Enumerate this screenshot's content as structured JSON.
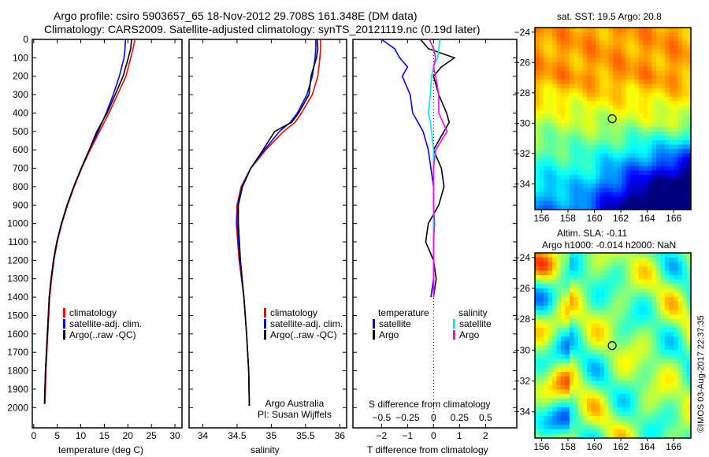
{
  "title": {
    "line1": "Argo profile: csiro 5903657_65 18-Nov-2012 29.708S 161.348E (DM data)",
    "line2": "Climatology: CARS2009. Satellite-adjusted climatology: synTS_20121119.nc (0.19d later)"
  },
  "colors": {
    "climatology": "#ff0000",
    "satellite": "#0000ff",
    "argo": "#000000",
    "s_satellite": "#00e5e5",
    "s_argo": "#ff00ff"
  },
  "credit": "©IMOS 03-Aug-2017 22:37:35",
  "legend_profiles": [
    "climatology",
    "satellite-adj. clim.",
    "Argo(..raw -QC)"
  ],
  "legend_diff": {
    "t_head": "temperature",
    "s_head": "salinity",
    "t_sat": "satellite",
    "t_argo": "Argo",
    "s_sat": "satellite",
    "s_argo": "Argo"
  },
  "attribution": {
    "line1": "Argo Australia",
    "line2": "PI: Susan Wijffels"
  },
  "chart_data": [
    {
      "type": "line",
      "name": "temperature",
      "xlabel": "temperature (deg C)",
      "ylabel": "",
      "xlim": [
        -0.3,
        31.5
      ],
      "ylim": [
        2110,
        0
      ],
      "xticks": [
        0,
        5,
        10,
        15,
        20,
        25,
        30
      ],
      "yticks": [
        0,
        100,
        200,
        300,
        400,
        500,
        600,
        700,
        800,
        900,
        1000,
        1100,
        1200,
        1300,
        1400,
        1500,
        1600,
        1700,
        1800,
        1900,
        2000
      ],
      "depth": [
        0,
        50,
        100,
        200,
        300,
        400,
        500,
        600,
        700,
        800,
        900,
        1000,
        1100,
        1200,
        1300,
        1400,
        1600,
        1800,
        1980
      ],
      "series": [
        {
          "name": "climatology",
          "values": [
            21.5,
            21.1,
            20.6,
            19.6,
            17.8,
            16.0,
            14.0,
            12.0,
            10.2,
            8.6,
            7.2,
            6.0,
            5.0,
            4.3,
            3.8,
            3.4,
            3.0,
            2.6,
            2.4
          ]
        },
        {
          "name": "satellite-adj. clim.",
          "values": [
            19.5,
            19.4,
            19.2,
            18.2,
            16.9,
            15.4,
            13.7,
            11.8,
            10.1,
            8.5,
            7.1,
            5.9,
            4.9,
            4.2,
            3.7,
            3.3,
            2.9,
            2.5,
            2.3
          ]
        },
        {
          "name": "Argo(..raw -QC)",
          "values": [
            20.8,
            20.6,
            20.1,
            19.0,
            17.3,
            15.6,
            13.4,
            11.8,
            10.1,
            8.5,
            7.1,
            5.9,
            4.9,
            4.2,
            3.7,
            3.3,
            2.9,
            2.5,
            2.3
          ]
        }
      ]
    },
    {
      "type": "line",
      "name": "salinity",
      "xlabel": "salinity",
      "xlim": [
        33.8,
        36.1
      ],
      "ylim": [
        2110,
        0
      ],
      "xticks": [
        34,
        34.5,
        35,
        35.5,
        36
      ],
      "depth": [
        0,
        50,
        100,
        200,
        300,
        400,
        450,
        500,
        600,
        700,
        800,
        900,
        1000,
        1200,
        1400,
        1600,
        1800,
        1990
      ],
      "series": [
        {
          "name": "climatology",
          "values": [
            35.72,
            35.72,
            35.71,
            35.68,
            35.6,
            35.44,
            35.35,
            35.18,
            34.92,
            34.7,
            34.56,
            34.5,
            34.49,
            34.53,
            34.6,
            34.64,
            34.67,
            34.68
          ]
        },
        {
          "name": "satellite-adj. clim.",
          "values": [
            35.65,
            35.65,
            35.64,
            35.6,
            35.52,
            35.38,
            35.28,
            35.12,
            34.9,
            34.7,
            34.57,
            34.51,
            34.5,
            34.54,
            34.6,
            34.64,
            34.67,
            34.68
          ]
        },
        {
          "name": "Argo(..raw -QC)",
          "values": [
            35.67,
            35.68,
            35.66,
            35.58,
            35.55,
            35.4,
            35.3,
            35.05,
            34.88,
            34.7,
            34.58,
            34.52,
            34.52,
            34.55,
            34.6,
            34.64,
            34.67,
            34.68
          ]
        }
      ]
    },
    {
      "type": "line",
      "name": "difference",
      "xlabel": "T difference from climatology",
      "x2label": "S difference from climatology",
      "xlim": [
        -3.1,
        3.2
      ],
      "xticks": [
        -2,
        -1,
        0,
        1,
        2
      ],
      "x2ticks": [
        -0.5,
        -0.25,
        0,
        0.25,
        0.5
      ],
      "ylim": [
        2110,
        0
      ],
      "depth": [
        0,
        50,
        100,
        150,
        200,
        300,
        400,
        450,
        500,
        600,
        700,
        800,
        900,
        1000,
        1100,
        1200,
        1300,
        1400
      ],
      "series": [
        {
          "name": "T satellite",
          "values": [
            -2.0,
            -1.5,
            -1.3,
            -1.0,
            -1.2,
            -0.9,
            -0.8,
            -0.6,
            -0.4,
            -0.2,
            -0.1,
            0,
            0,
            0,
            0,
            0,
            0,
            -0.1
          ]
        },
        {
          "name": "T Argo",
          "values": [
            -0.5,
            -0.2,
            0.8,
            0.3,
            0,
            0.2,
            0.5,
            0.6,
            0.4,
            0,
            0.3,
            0.4,
            0.2,
            -0.2,
            -0.3,
            0,
            0.1,
            0
          ]
        },
        {
          "name": "S satellite",
          "values": [
            0.06,
            0.05,
            0.04,
            0,
            -0.02,
            -0.03,
            -0.05,
            -0.03,
            -0.02,
            0,
            0,
            0,
            0,
            0,
            0,
            0,
            0,
            0
          ]
        },
        {
          "name": "S Argo",
          "values": [
            -0.04,
            0,
            0.02,
            0,
            0.02,
            0.05,
            0.05,
            0.09,
            0.13,
            0.02,
            0,
            0,
            0,
            0.01,
            0,
            0,
            0,
            0
          ]
        }
      ]
    },
    {
      "type": "heatmap",
      "name": "sst_map",
      "title": "sat. SST: 19.5 Argo: 20.8",
      "xticks": [
        156,
        158,
        160,
        162,
        164,
        166
      ],
      "yticks": [
        -24,
        -26,
        -28,
        -30,
        -32,
        -34
      ],
      "xlim": [
        155.5,
        167.3
      ],
      "ylim": [
        -35.7,
        -23.7
      ],
      "argo_position": [
        161.348,
        -29.708
      ]
    },
    {
      "type": "heatmap",
      "name": "sla_map",
      "title1": "Altim. SLA: -0.11",
      "title2": "Argo h1000: -0.014 h2000: NaN",
      "xticks": [
        156,
        158,
        160,
        162,
        164,
        166
      ],
      "yticks": [
        -24,
        -26,
        -28,
        -30,
        -32,
        -34
      ],
      "xlim": [
        155.5,
        167.3
      ],
      "ylim": [
        -35.7,
        -23.7
      ],
      "argo_position": [
        161.348,
        -29.708
      ]
    }
  ]
}
